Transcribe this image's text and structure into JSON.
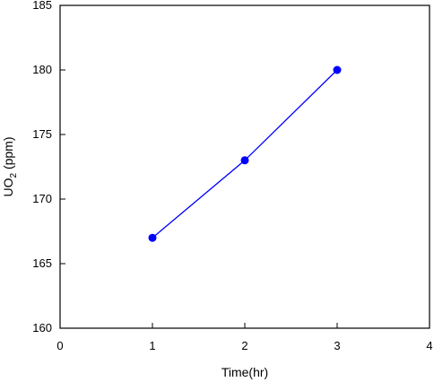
{
  "chart_data": {
    "type": "line",
    "title": "",
    "xlabel": "Time(hr)",
    "ylabel": {
      "main": "UO",
      "subscript": "2",
      "suffix": " (ppm)"
    },
    "xlim": [
      0,
      4
    ],
    "ylim": [
      160,
      185
    ],
    "xticks": [
      "0",
      "1",
      "2",
      "3",
      "4"
    ],
    "yticks": [
      "160",
      "165",
      "170",
      "175",
      "180",
      "185"
    ],
    "grid": false,
    "legend": "none",
    "series": [
      {
        "x": [
          1,
          2,
          3
        ],
        "y": [
          167,
          173,
          180
        ],
        "color": "#0000ff",
        "marker": "circle"
      }
    ]
  }
}
